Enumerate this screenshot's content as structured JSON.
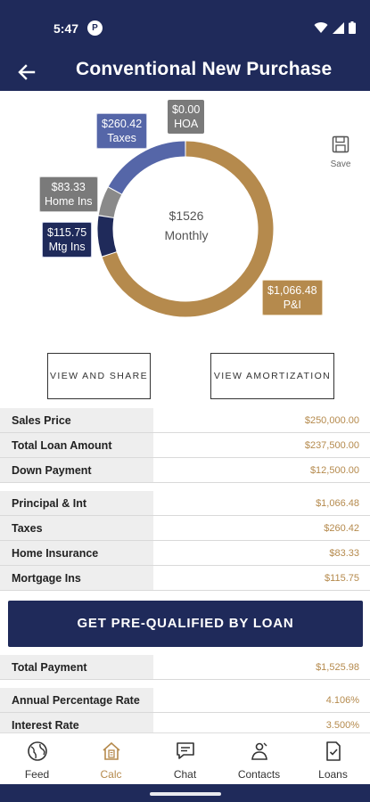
{
  "status_bar": {
    "time": "5:47",
    "badge": "P"
  },
  "app_bar": {
    "title": "Conventional New Purchase"
  },
  "chart": {
    "center_amount": "$1526",
    "center_label": "Monthly",
    "save_label": "Save",
    "colors": {
      "pi": "#b58a4d",
      "taxes": "#5566a8",
      "home_ins": "#8a8a8a",
      "mtg_ins": "#1f2a5a",
      "hoa": "#7a7a7a"
    },
    "callouts": {
      "taxes": {
        "amount": "$260.42",
        "label": "Taxes"
      },
      "hoa": {
        "amount": "$0.00",
        "label": "HOA"
      },
      "home_ins": {
        "amount": "$83.33",
        "label": "Home Ins"
      },
      "mtg_ins": {
        "amount": "$115.75",
        "label": "Mtg Ins"
      },
      "pi": {
        "amount": "$1,066.48",
        "label": "P&I"
      }
    },
    "segments": [
      {
        "name": "pi",
        "value": 1066.48
      },
      {
        "name": "mtg_ins",
        "value": 115.75
      },
      {
        "name": "home_ins",
        "value": 83.33
      },
      {
        "name": "taxes",
        "value": 260.42
      },
      {
        "name": "hoa",
        "value": 0.0
      }
    ]
  },
  "buttons": {
    "view_share": "VIEW AND SHARE",
    "view_amortization": "VIEW AMORTIZATION",
    "prequal": "GET PRE-QUALIFIED BY LOAN"
  },
  "loan_rows": [
    {
      "label": "Sales Price",
      "value": "$250,000.00"
    },
    {
      "label": "Total Loan Amount",
      "value": "$237,500.00"
    },
    {
      "label": "Down Payment",
      "value": "$12,500.00"
    }
  ],
  "payment_rows": [
    {
      "label": "Principal & Int",
      "value": "$1,066.48"
    },
    {
      "label": "Taxes",
      "value": "$260.42"
    },
    {
      "label": "Home Insurance",
      "value": "$83.33"
    },
    {
      "label": "Mortgage Ins",
      "value": "$115.75"
    }
  ],
  "total_rows": [
    {
      "label": "Total Payment",
      "value": "$1,525.98"
    }
  ],
  "rate_rows": [
    {
      "label": "Annual Percentage Rate",
      "value": "4.106%"
    },
    {
      "label": "Interest Rate",
      "value": "3.500%"
    }
  ],
  "bottom_nav": [
    {
      "label": "Feed",
      "icon": "globe-icon"
    },
    {
      "label": "Calc",
      "icon": "house-calculator-icon"
    },
    {
      "label": "Chat",
      "icon": "chat-icon"
    },
    {
      "label": "Contacts",
      "icon": "contacts-icon"
    },
    {
      "label": "Loans",
      "icon": "document-check-icon"
    }
  ]
}
